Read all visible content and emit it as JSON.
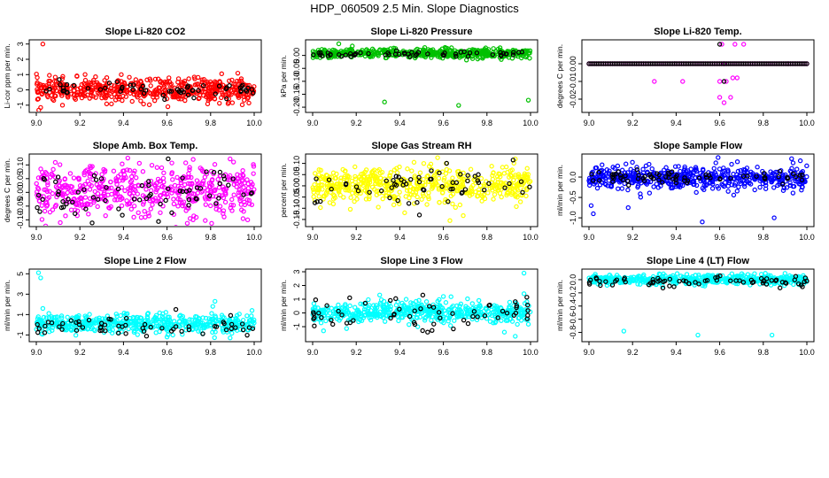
{
  "figure": {
    "title": "HDP_060509  2.5 Min. Slope Diagnostics"
  },
  "chart_data": [
    {
      "type": "scatter",
      "title": "Slope Li-820 CO2",
      "ylabel": "Li-cor ppm per min.",
      "xlim": [
        9.0,
        10.0
      ],
      "ylim": [
        -1.3,
        3.1
      ],
      "xticks": [
        "9.0",
        "9.2",
        "9.4",
        "9.6",
        "9.8",
        "10.0"
      ],
      "yticks": [
        -1,
        0,
        1,
        2,
        3
      ],
      "series": [
        {
          "name": "all",
          "color": "#ff0000",
          "n": 520,
          "spread": 0.38,
          "outliers": [
            [
              9.03,
              3.0
            ],
            [
              9.39,
              1.0
            ],
            [
              9.06,
              0.95
            ],
            [
              9.02,
              -1.15
            ],
            [
              9.44,
              -0.75
            ],
            [
              9.88,
              -0.9
            ],
            [
              9.12,
              -1.0
            ]
          ]
        },
        {
          "name": "selected",
          "color": "#000000",
          "n": 60,
          "spread": 0.22,
          "outliers": []
        }
      ]
    },
    {
      "type": "scatter",
      "title": "Slope Li-820 Pressure",
      "ylabel": "kPa per min.",
      "xlim": [
        9.0,
        10.0
      ],
      "ylim": [
        -0.21,
        0.05
      ],
      "xticks": [
        "9.0",
        "9.2",
        "9.4",
        "9.6",
        "9.8",
        "10.0"
      ],
      "yticks": [
        -0.2,
        -0.15,
        -0.1,
        -0.05,
        0.0
      ],
      "ytick_labels": [
        "-0.20",
        "-0.15",
        "-0.10",
        "-0.05",
        "0.00"
      ],
      "series": [
        {
          "name": "all",
          "color": "#00c000",
          "n": 480,
          "spread": 0.009,
          "center": 0.008,
          "outliers": [
            [
              9.33,
              -0.18
            ],
            [
              9.67,
              -0.193
            ],
            [
              9.99,
              -0.173
            ],
            [
              9.12,
              0.045
            ]
          ]
        },
        {
          "name": "selected",
          "color": "#000000",
          "n": 55,
          "spread": 0.006,
          "center": 0.005,
          "outliers": []
        }
      ]
    },
    {
      "type": "scatter",
      "title": "Slope Li-820 Temp.",
      "ylabel": "degrees C per min.",
      "xlim": [
        9.0,
        10.0
      ],
      "ylim": [
        -0.026,
        0.012
      ],
      "xticks": [
        "9.0",
        "9.2",
        "9.4",
        "9.6",
        "9.8",
        "10.0"
      ],
      "yticks": [
        -0.02,
        -0.01,
        0.0
      ],
      "ytick_labels": [
        "-0.02",
        "-0.01",
        "0.00"
      ],
      "series": [
        {
          "name": "all",
          "color": "#ff00ff",
          "n": 0,
          "line": 0.0,
          "outliers": [
            [
              9.3,
              -0.01
            ],
            [
              9.43,
              -0.01
            ],
            [
              9.6,
              -0.01
            ],
            [
              9.63,
              -0.01
            ],
            [
              9.66,
              -0.008
            ],
            [
              9.68,
              -0.008
            ],
            [
              9.61,
              0.011
            ],
            [
              9.67,
              0.011
            ],
            [
              9.71,
              0.011
            ],
            [
              9.62,
              -0.022
            ],
            [
              9.6,
              -0.019
            ],
            [
              9.65,
              -0.019
            ],
            [
              9.62,
              0.0
            ]
          ]
        },
        {
          "name": "selected",
          "color": "#000000",
          "n": 0,
          "line": 0.0,
          "outliers": [
            [
              9.62,
              -0.01
            ],
            [
              9.6,
              0.011
            ]
          ]
        }
      ]
    },
    {
      "type": "scatter",
      "title": "Slope Amb. Box Temp.",
      "ylabel": "degrees C per min.",
      "xlim": [
        9.0,
        10.0
      ],
      "ylim": [
        -0.115,
        0.13
      ],
      "xticks": [
        "9.0",
        "9.2",
        "9.4",
        "9.6",
        "9.8",
        "10.0"
      ],
      "yticks": [
        -0.1,
        -0.05,
        0.0,
        0.05,
        0.1
      ],
      "ytick_labels": [
        "-0.10",
        "-0.05",
        "0.00",
        "0.05",
        "0.10"
      ],
      "series": [
        {
          "name": "all",
          "color": "#ff00ff",
          "n": 520,
          "spread": 0.045,
          "center": 0.005,
          "outliers": [
            [
              9.42,
              0.125
            ],
            [
              9.72,
              0.12
            ],
            [
              9.11,
              -0.11
            ],
            [
              9.97,
              -0.1
            ]
          ]
        },
        {
          "name": "selected",
          "color": "#000000",
          "n": 70,
          "spread": 0.045,
          "center": 0.0,
          "outliers": []
        }
      ]
    },
    {
      "type": "scatter",
      "title": "Slope Gas Stream RH",
      "ylabel": "percent per min.",
      "xlim": [
        9.0,
        10.0
      ],
      "ylim": [
        -0.17,
        0.13
      ],
      "xticks": [
        "9.0",
        "9.2",
        "9.4",
        "9.6",
        "9.8",
        "10.0"
      ],
      "yticks": [
        -0.15,
        -0.1,
        -0.05,
        0.0,
        0.05,
        0.1
      ],
      "ytick_labels": [
        "-0.15",
        "-0.10",
        "-0.05",
        "0.00",
        "0.05",
        "0.10"
      ],
      "series": [
        {
          "name": "all",
          "color": "#ffff00",
          "n": 560,
          "spread": 0.04,
          "center": 0.0,
          "outliers": [
            [
              9.63,
              -0.155
            ],
            [
              9.93,
              0.12
            ]
          ]
        },
        {
          "name": "selected",
          "color": "#000000",
          "n": 60,
          "spread": 0.04,
          "center": 0.0,
          "outliers": [
            [
              9.92,
              0.115
            ],
            [
              9.49,
              -0.13
            ]
          ]
        }
      ]
    },
    {
      "type": "scatter",
      "title": "Slope Sample Flow",
      "ylabel": "ml/min per min.",
      "xlim": [
        9.0,
        10.0
      ],
      "ylim": [
        -1.15,
        0.5
      ],
      "xticks": [
        "9.0",
        "9.2",
        "9.4",
        "9.6",
        "9.8",
        "10.0"
      ],
      "yticks": [
        -1.0,
        -0.5,
        0.0
      ],
      "ytick_labels": [
        "-1.0",
        "-0.5",
        "0.0"
      ],
      "series": [
        {
          "name": "all",
          "color": "#0000ff",
          "n": 520,
          "spread": 0.14,
          "center": -0.02,
          "outliers": [
            [
              9.93,
              0.45
            ],
            [
              9.97,
              0.4
            ],
            [
              9.01,
              -0.7
            ],
            [
              9.02,
              -0.9
            ],
            [
              9.85,
              -1.0
            ],
            [
              9.52,
              -1.1
            ],
            [
              9.06,
              0.3
            ],
            [
              9.18,
              -0.75
            ]
          ]
        },
        {
          "name": "selected",
          "color": "#000000",
          "n": 70,
          "spread": 0.08,
          "center": 0.0,
          "outliers": []
        }
      ]
    },
    {
      "type": "scatter",
      "title": "Slope Line 2 Flow",
      "ylabel": "ml/min per min.",
      "xlim": [
        9.0,
        10.0
      ],
      "ylim": [
        -1.4,
        5.2
      ],
      "xticks": [
        "9.0",
        "9.2",
        "9.4",
        "9.6",
        "9.8",
        "10.0"
      ],
      "yticks": [
        -1,
        1,
        3,
        5
      ],
      "series": [
        {
          "name": "all",
          "color": "#00ffff",
          "n": 520,
          "spread": 0.45,
          "center": 0.1,
          "outliers": [
            [
              9.01,
              5.1
            ],
            [
              9.02,
              4.6
            ],
            [
              9.82,
              2.3
            ],
            [
              9.81,
              1.8
            ],
            [
              9.03,
              1.6
            ],
            [
              9.99,
              1.4
            ],
            [
              9.6,
              -1.2
            ]
          ]
        },
        {
          "name": "selected",
          "color": "#000000",
          "n": 60,
          "spread": 0.45,
          "center": -0.2,
          "outliers": []
        }
      ]
    },
    {
      "type": "scatter",
      "title": "Slope Line 3 Flow",
      "ylabel": "ml/min per min.",
      "xlim": [
        9.0,
        10.0
      ],
      "ylim": [
        -1.9,
        3.0
      ],
      "xticks": [
        "9.0",
        "9.2",
        "9.4",
        "9.6",
        "9.8",
        "10.0"
      ],
      "yticks": [
        -1,
        0,
        1,
        2,
        3
      ],
      "series": [
        {
          "name": "all",
          "color": "#00ffff",
          "n": 540,
          "spread": 0.38,
          "center": 0.05,
          "outliers": [
            [
              9.97,
              2.9
            ],
            [
              9.93,
              -1.7
            ],
            [
              9.88,
              -1.4
            ],
            [
              9.05,
              -1.3
            ],
            [
              9.6,
              1.2
            ],
            [
              9.97,
              1.4
            ]
          ]
        },
        {
          "name": "selected",
          "color": "#000000",
          "n": 60,
          "spread": 0.55,
          "center": -0.1,
          "outliers": [
            [
              9.17,
              1.1
            ]
          ]
        }
      ]
    },
    {
      "type": "scatter",
      "title": "Slope Line 4 (LT) Flow",
      "ylabel": "ml/min per min.",
      "xlim": [
        9.0,
        10.0
      ],
      "ylim": [
        -0.9,
        0.12
      ],
      "xticks": [
        "9.0",
        "9.2",
        "9.4",
        "9.6",
        "9.8",
        "10.0"
      ],
      "yticks": [
        -0.8,
        -0.6,
        -0.4,
        -0.2,
        0.0
      ],
      "ytick_labels": [
        "-0.8",
        "-0.6",
        "-0.4",
        "-0.2",
        "0.0"
      ],
      "series": [
        {
          "name": "all",
          "color": "#00ffff",
          "n": 520,
          "spread": 0.035,
          "center": 0.0,
          "outliers": [
            [
              9.16,
              -0.78
            ],
            [
              9.5,
              -0.84
            ],
            [
              9.84,
              -0.84
            ]
          ]
        },
        {
          "name": "selected",
          "color": "#000000",
          "n": 70,
          "spread": 0.045,
          "center": -0.03,
          "outliers": []
        }
      ]
    }
  ]
}
